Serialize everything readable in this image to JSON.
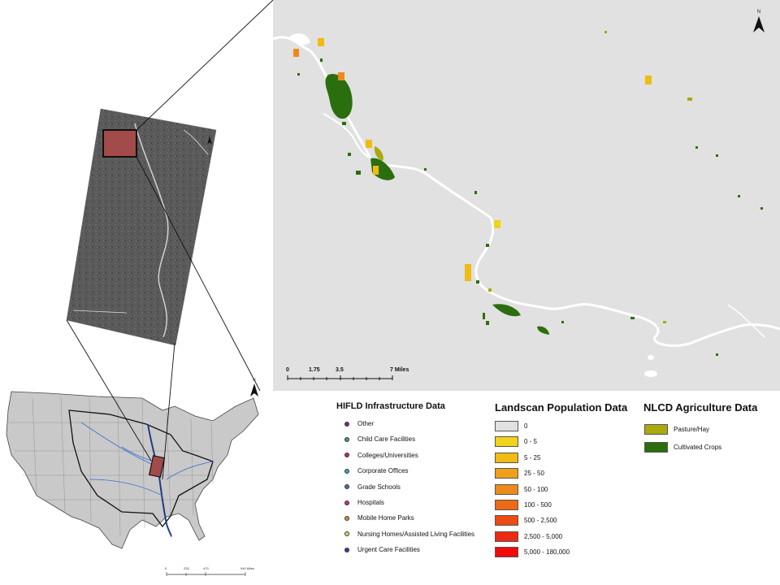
{
  "north_label": "N",
  "detail_scale": {
    "ticks": [
      "0",
      "1.75",
      "3.5",
      "7 Miles"
    ]
  },
  "us_scale": {
    "ticks": [
      "0",
      "235",
      "470",
      "940 Miles"
    ]
  },
  "hifld_legend": {
    "title": "HIFLD Infrastructure Data",
    "items": [
      {
        "label": "Other",
        "color": "#7b2d8e"
      },
      {
        "label": "Child Care Facilities",
        "color": "#3aa860"
      },
      {
        "label": "Colleges/Universities",
        "color": "#c0304a"
      },
      {
        "label": "Corporate Offices",
        "color": "#3aa7c8"
      },
      {
        "label": "Grade Schools",
        "color": "#4a6fb8"
      },
      {
        "label": "Hospitals",
        "color": "#c0309a"
      },
      {
        "label": "Mobile Home Parks",
        "color": "#d8902e"
      },
      {
        "label": "Nursing Homes/Assisted Living Facilities",
        "color": "#d8d86a"
      },
      {
        "label": "Urgent Care Facilities",
        "color": "#3a3a9a"
      }
    ]
  },
  "landscan_legend": {
    "title": "Landscan Population Data",
    "items": [
      {
        "label": "0",
        "color": "#e1e1e1"
      },
      {
        "label": "0 - 5",
        "color": "#f2d21a"
      },
      {
        "label": "5 - 25",
        "color": "#f0bb12"
      },
      {
        "label": "25 - 50",
        "color": "#f0a018"
      },
      {
        "label": "50 - 100",
        "color": "#ee8a1a"
      },
      {
        "label": "100 - 500",
        "color": "#ee6a14"
      },
      {
        "label": "500 - 2,500",
        "color": "#ee4a14"
      },
      {
        "label": "2,500 - 5,000",
        "color": "#ee2a14"
      },
      {
        "label": "5,000 - 180,000",
        "color": "#f00a0a"
      }
    ]
  },
  "nlcd_legend": {
    "title": "NLCD Agriculture Data",
    "items": [
      {
        "label": "Pasture/Hay",
        "color": "#aaaa0e"
      },
      {
        "label": "Cultivated Crops",
        "color": "#2b6e0e"
      }
    ]
  }
}
